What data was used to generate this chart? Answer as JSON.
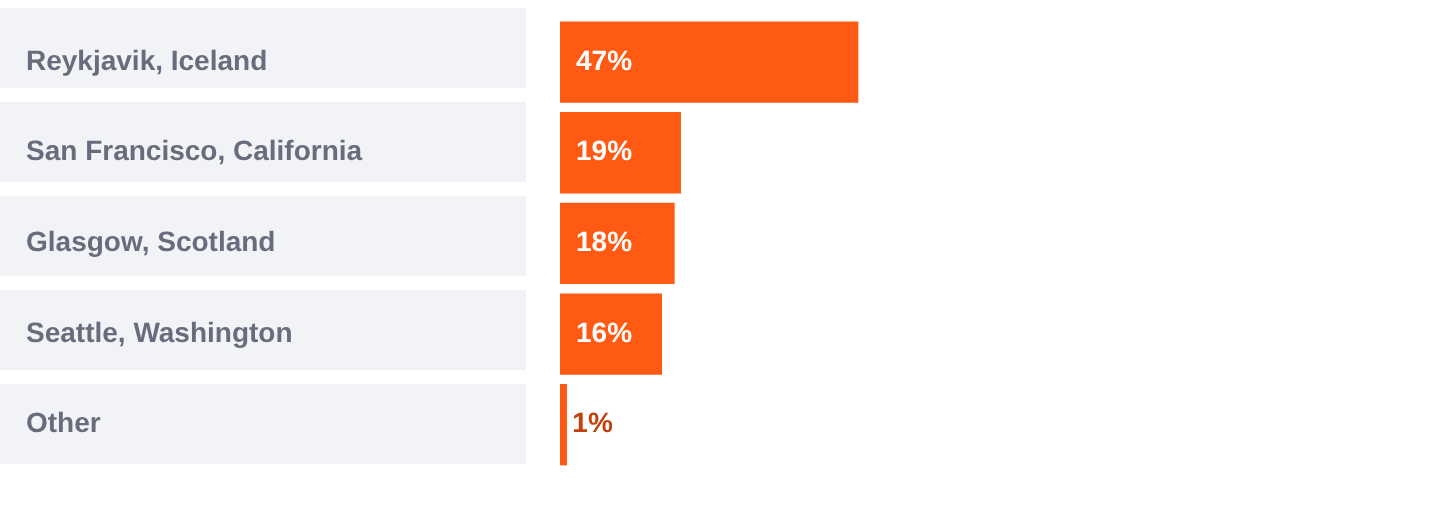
{
  "chart_data": {
    "type": "bar",
    "orientation": "horizontal",
    "categories": [
      "Reykjavik, Iceland",
      "San Francisco, California",
      "Glasgow, Scotland",
      "Seattle, Washington",
      "Other"
    ],
    "values": [
      47,
      19,
      18,
      16,
      1
    ],
    "value_labels": [
      "47%",
      "19%",
      "18%",
      "16%",
      "1%"
    ],
    "color": "#ff5a14",
    "legend": false
  }
}
